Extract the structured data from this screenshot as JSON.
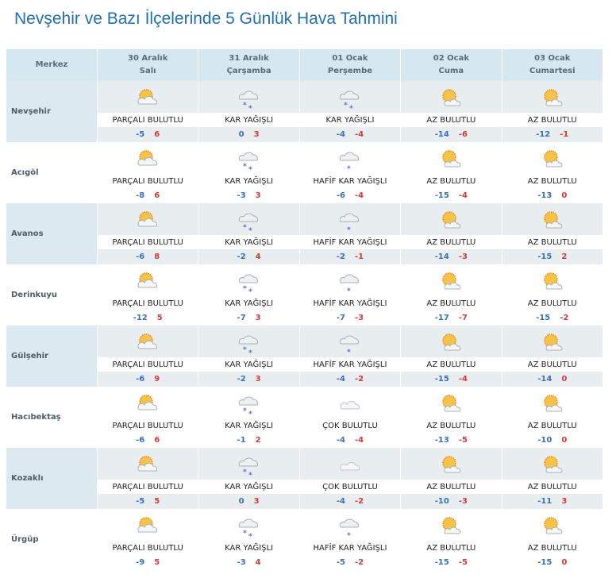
{
  "title": "Nevşehir ve Bazı İlçelerinde 5 Günlük Hava Tahmini",
  "header": {
    "merkez": "Merkez",
    "days": [
      {
        "date": "30 Aralık",
        "day": "Salı"
      },
      {
        "date": "31 Aralık",
        "day": "Çarşamba"
      },
      {
        "date": "01 Ocak",
        "day": "Perşembe"
      },
      {
        "date": "02 Ocak",
        "day": "Cuma"
      },
      {
        "date": "03 Ocak",
        "day": "Cumartesi"
      }
    ]
  },
  "colors": {
    "low": "#3c6fb5",
    "high": "#d23a3a",
    "title": "#1f6fb5"
  },
  "rows": [
    {
      "city": "Nevşehir",
      "f": [
        [
          "partly-cloudy-icon",
          "PARÇALI BULUTLU",
          "-5",
          "6"
        ],
        [
          "snow-icon",
          "KAR YAĞIŞLI",
          "0",
          "3"
        ],
        [
          "snow-icon",
          "KAR YAĞIŞLI",
          "-4",
          "-4"
        ],
        [
          "mostly-sunny-icon",
          "AZ BULUTLU",
          "-14",
          "-6"
        ],
        [
          "mostly-sunny-icon",
          "AZ BULUTLU",
          "-12",
          "-1"
        ]
      ]
    },
    {
      "city": "Acıgöl",
      "f": [
        [
          "partly-cloudy-icon",
          "PARÇALI BULUTLU",
          "-8",
          "6"
        ],
        [
          "snow-icon",
          "KAR YAĞIŞLI",
          "-3",
          "3"
        ],
        [
          "light-snow-icon",
          "HAFİF KAR YAĞIŞLI",
          "-6",
          "-4"
        ],
        [
          "mostly-sunny-icon",
          "AZ BULUTLU",
          "-15",
          "-4"
        ],
        [
          "mostly-sunny-icon",
          "AZ BULUTLU",
          "-13",
          "0"
        ]
      ]
    },
    {
      "city": "Avanos",
      "f": [
        [
          "partly-cloudy-icon",
          "PARÇALI BULUTLU",
          "-6",
          "8"
        ],
        [
          "snow-icon",
          "KAR YAĞIŞLI",
          "-2",
          "4"
        ],
        [
          "light-snow-icon",
          "HAFİF KAR YAĞIŞLI",
          "-2",
          "-1"
        ],
        [
          "mostly-sunny-icon",
          "AZ BULUTLU",
          "-14",
          "-3"
        ],
        [
          "mostly-sunny-icon",
          "AZ BULUTLU",
          "-15",
          "2"
        ]
      ]
    },
    {
      "city": "Derinkuyu",
      "f": [
        [
          "partly-cloudy-icon",
          "PARÇALI BULUTLU",
          "-12",
          "5"
        ],
        [
          "snow-icon",
          "KAR YAĞIŞLI",
          "-7",
          "3"
        ],
        [
          "light-snow-icon",
          "HAFİF KAR YAĞIŞLI",
          "-7",
          "-3"
        ],
        [
          "mostly-sunny-icon",
          "AZ BULUTLU",
          "-17",
          "-7"
        ],
        [
          "mostly-sunny-icon",
          "AZ BULUTLU",
          "-15",
          "-2"
        ]
      ]
    },
    {
      "city": "Gülşehir",
      "f": [
        [
          "partly-cloudy-icon",
          "PARÇALI BULUTLU",
          "-6",
          "9"
        ],
        [
          "snow-icon",
          "KAR YAĞIŞLI",
          "-2",
          "3"
        ],
        [
          "light-snow-icon",
          "HAFİF KAR YAĞIŞLI",
          "-4",
          "-2"
        ],
        [
          "mostly-sunny-icon",
          "AZ BULUTLU",
          "-15",
          "-4"
        ],
        [
          "mostly-sunny-icon",
          "AZ BULUTLU",
          "-14",
          "0"
        ]
      ]
    },
    {
      "city": "Hacıbektaş",
      "f": [
        [
          "partly-cloudy-icon",
          "PARÇALI BULUTLU",
          "-6",
          "6"
        ],
        [
          "snow-icon",
          "KAR YAĞIŞLI",
          "-1",
          "2"
        ],
        [
          "cloudy-icon",
          "ÇOK BULUTLU",
          "-4",
          "-4"
        ],
        [
          "mostly-sunny-icon",
          "AZ BULUTLU",
          "-13",
          "-5"
        ],
        [
          "mostly-sunny-icon",
          "AZ BULUTLU",
          "-10",
          "0"
        ]
      ]
    },
    {
      "city": "Kozaklı",
      "f": [
        [
          "partly-cloudy-icon",
          "PARÇALI BULUTLU",
          "-5",
          "5"
        ],
        [
          "snow-icon",
          "KAR YAĞIŞLI",
          "0",
          "3"
        ],
        [
          "cloudy-icon",
          "ÇOK BULUTLU",
          "-4",
          "-2"
        ],
        [
          "mostly-sunny-icon",
          "AZ BULUTLU",
          "-10",
          "-3"
        ],
        [
          "mostly-sunny-icon",
          "AZ BULUTLU",
          "-11",
          "3"
        ]
      ]
    },
    {
      "city": "Ürgüp",
      "f": [
        [
          "partly-cloudy-icon",
          "PARÇALI BULUTLU",
          "-9",
          "5"
        ],
        [
          "snow-icon",
          "KAR YAĞIŞLI",
          "-3",
          "4"
        ],
        [
          "light-snow-icon",
          "HAFİF KAR YAĞIŞLI",
          "-5",
          "-2"
        ],
        [
          "mostly-sunny-icon",
          "AZ BULUTLU",
          "-15",
          "-5"
        ],
        [
          "mostly-sunny-icon",
          "AZ BULUTLU",
          "-15",
          "0"
        ]
      ]
    }
  ]
}
